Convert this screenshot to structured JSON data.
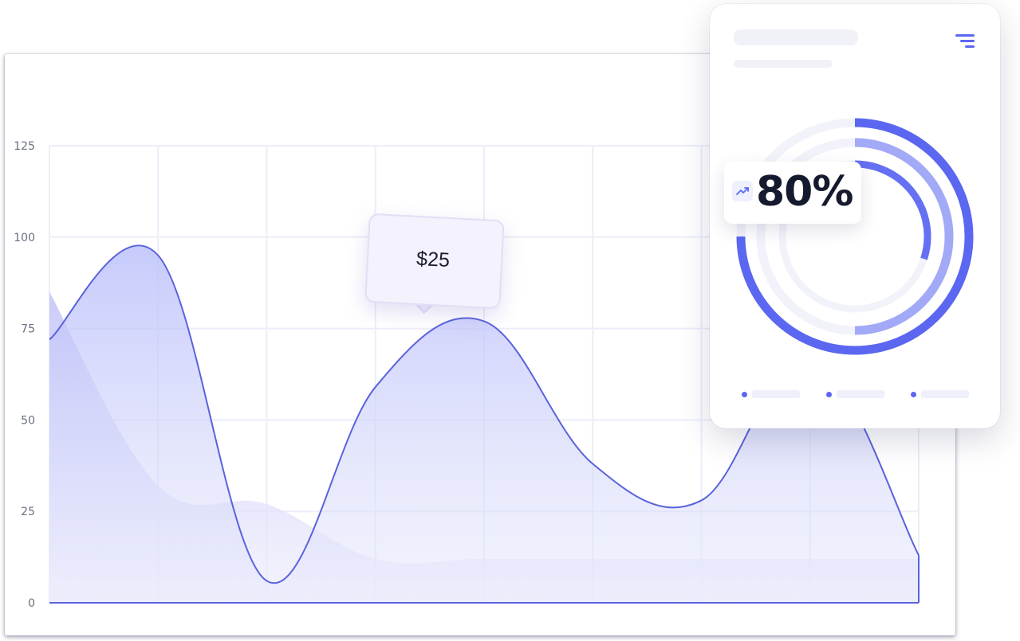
{
  "chart_data": {
    "type": "area",
    "ylim": [
      0,
      125
    ],
    "y_ticks": [
      "125",
      "100",
      "75",
      "50",
      "25",
      "0"
    ],
    "grid": true,
    "series": [
      {
        "style": "outlined",
        "x": [
          0,
          1,
          2,
          3,
          4,
          5,
          6,
          7,
          8
        ],
        "values": [
          72,
          95,
          6,
          59,
          77,
          38,
          28,
          68,
          13
        ]
      },
      {
        "style": "soft-filled",
        "x": [
          0,
          1,
          2,
          3,
          4,
          5,
          6,
          7,
          8
        ],
        "values": [
          85,
          32,
          27,
          12,
          12,
          12,
          12,
          12,
          12
        ]
      }
    ],
    "tooltip": {
      "label": "$25"
    }
  },
  "summary_card": {
    "kpi_value": "80%",
    "rings": [
      {
        "fraction": 0.75,
        "color": "#5b67f0"
      },
      {
        "fraction": 0.5,
        "color": "#a2a9f6"
      },
      {
        "fraction": 0.3,
        "color": "#6570f2"
      }
    ],
    "legend_count": 3,
    "icons": {
      "trend": "trending-up-icon",
      "menu": "filter-icon"
    }
  },
  "colors": {
    "accent": "#5b67f0",
    "line": "#5a63dc",
    "grid": "#eceef9",
    "tick_text": "#6b6f80"
  }
}
